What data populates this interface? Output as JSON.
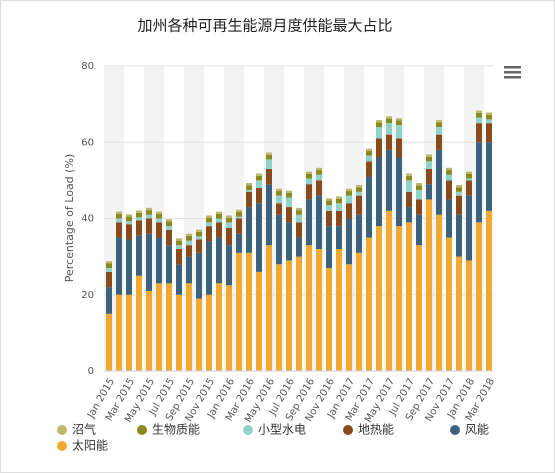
{
  "chart_data": {
    "type": "stacked_bar",
    "title": "加州各种可再生能源月度供能最大占比",
    "y_label": "Percentage of Load (%)",
    "categories": [
      "Jan 2015",
      null,
      "Mar 2015",
      null,
      "May 2015",
      null,
      "Jul 2015",
      null,
      "Sep 2015",
      null,
      "Nov 2015",
      null,
      "Jan 2016",
      null,
      "Mar 2016",
      null,
      "May 2016",
      null,
      "Jul 2016",
      null,
      "Sep 2016",
      null,
      "Nov 2016",
      null,
      "Jan 2017",
      null,
      "Mar 2017",
      null,
      "May 2017",
      null,
      "Jul 2017",
      null,
      "Sep 2017",
      null,
      "Nov 2017",
      null,
      "Jan 2018",
      null,
      "Mar 2018"
    ],
    "series": [
      {
        "name": "太阳能",
        "color": "#f0a830",
        "values": [
          15,
          20,
          20,
          25,
          21,
          23,
          23,
          20,
          23,
          19,
          20,
          23,
          22.5,
          31,
          31,
          26,
          33,
          28,
          29,
          30,
          33,
          32,
          27,
          32,
          28,
          31,
          35,
          38,
          42,
          38,
          39,
          33,
          45,
          41,
          35,
          30,
          29,
          39,
          42
        ]
      },
      {
        "name": "风能",
        "color": "#3d6280",
        "values": [
          7,
          15,
          14.5,
          10.5,
          15,
          12,
          10,
          8,
          7,
          12,
          14,
          12,
          10.5,
          5,
          12,
          18,
          16,
          13,
          10,
          5,
          12,
          14,
          11,
          6,
          12,
          10,
          16,
          18,
          16,
          18,
          4,
          8,
          4,
          17,
          10,
          11,
          17,
          21,
          18
        ]
      },
      {
        "name": "地热能",
        "color": "#8b4a1c",
        "values": [
          4,
          4,
          4,
          4,
          4,
          4,
          4,
          4,
          3,
          3.5,
          4,
          4,
          4.5,
          4,
          4,
          4,
          4,
          3,
          4,
          4,
          4,
          4,
          4,
          4,
          4,
          5,
          4,
          5,
          4,
          5,
          4,
          4,
          4,
          4,
          5,
          5,
          4,
          5,
          5
        ]
      },
      {
        "name": "小型水电",
        "color": "#8fd3c9",
        "values": [
          1,
          1,
          0.8,
          0.8,
          1,
          1,
          1,
          1,
          1.2,
          0.8,
          1,
          1,
          1.5,
          0.5,
          0.5,
          2,
          2.5,
          2,
          2.5,
          2,
          1.5,
          1.5,
          1.5,
          2,
          2,
          1,
          1.5,
          3,
          3,
          3.5,
          3,
          2.5,
          2,
          2,
          1.5,
          1,
          0.5,
          1.5,
          1
        ]
      },
      {
        "name": "生物质能",
        "color": "#8a8a1f",
        "values": [
          1.2,
          1.2,
          1.2,
          1.2,
          1.2,
          1.2,
          1.2,
          1.2,
          1.2,
          1.2,
          1.2,
          1.2,
          1.2,
          1.2,
          1.2,
          1.2,
          1.2,
          1.2,
          1.2,
          1.2,
          1.2,
          1.2,
          1.2,
          1.2,
          1.2,
          1.2,
          1.2,
          1.2,
          1.2,
          1.2,
          1.2,
          1.2,
          1.2,
          1.2,
          1.2,
          1.2,
          1.2,
          1.2,
          1.2
        ]
      },
      {
        "name": "沼气",
        "color": "#bdb76b",
        "values": [
          0.6,
          0.6,
          0.6,
          0.6,
          0.6,
          0.6,
          0.6,
          0.6,
          0.6,
          0.6,
          0.6,
          0.6,
          0.6,
          0.6,
          0.6,
          0.6,
          0.6,
          0.6,
          0.6,
          0.6,
          0.6,
          0.6,
          0.6,
          0.6,
          0.6,
          0.6,
          0.6,
          0.6,
          0.6,
          0.6,
          0.6,
          0.6,
          0.6,
          0.6,
          0.6,
          0.6,
          0.6,
          0.6,
          0.6
        ]
      }
    ],
    "ylim": [
      0,
      80
    ],
    "yticks": [
      0,
      20,
      40,
      60,
      80
    ],
    "grid": true
  }
}
